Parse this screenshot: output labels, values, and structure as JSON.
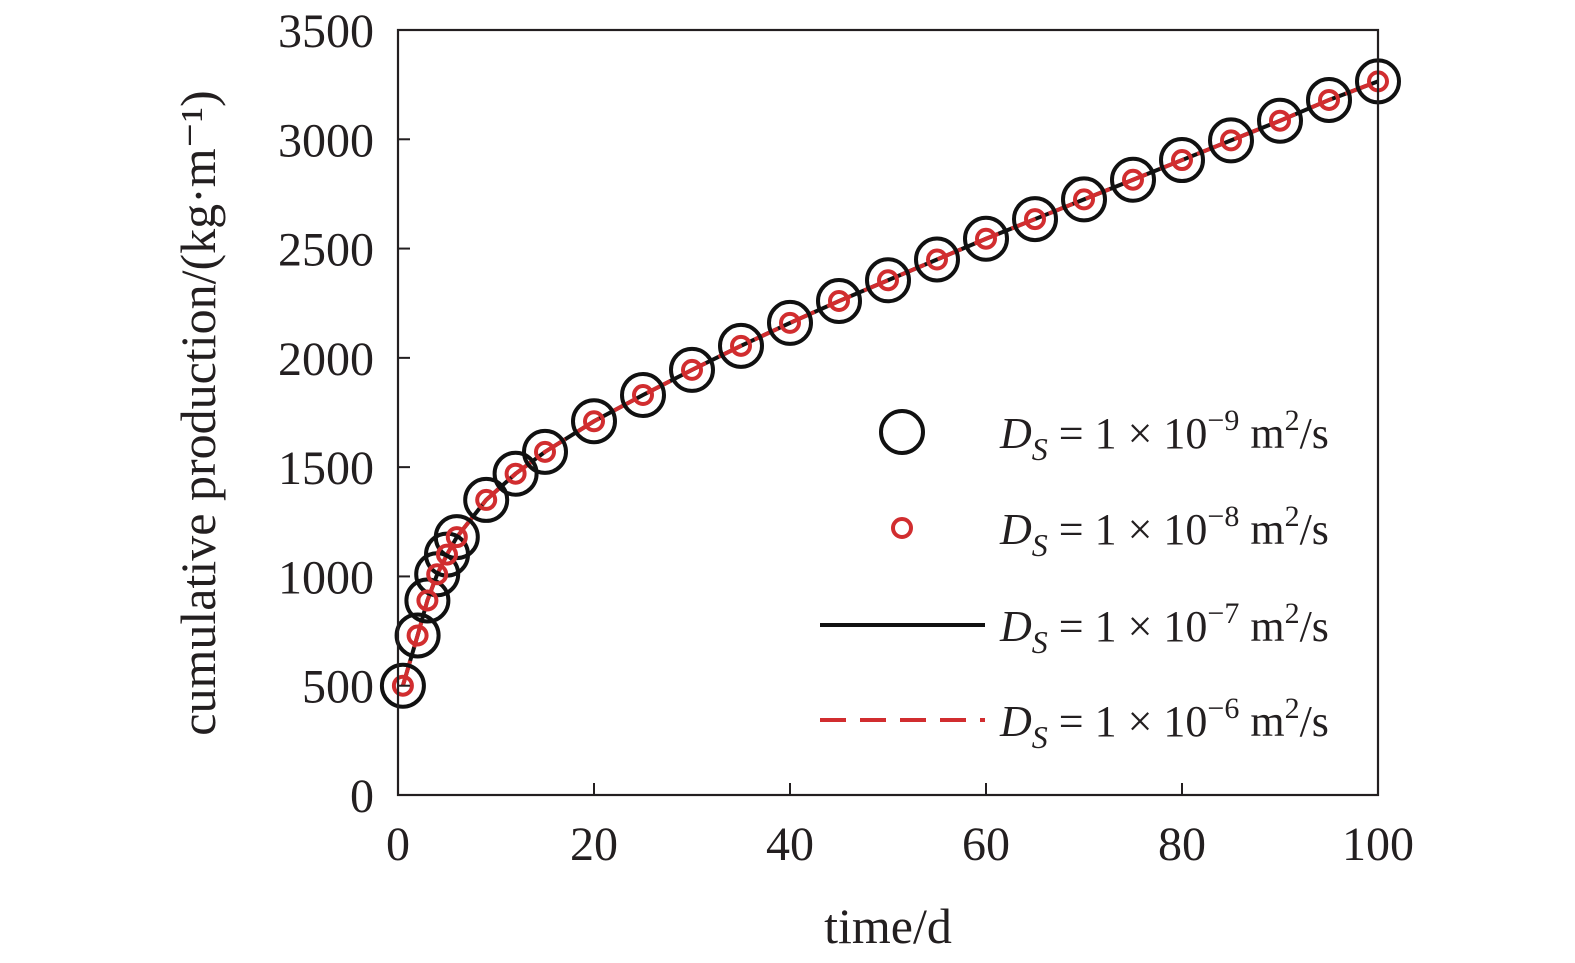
{
  "chart_data": {
    "type": "scatter",
    "title": "",
    "xlabel": "time/d",
    "ylabel": "cumulative production/(kg·m⁻¹)",
    "xlim": [
      0,
      100
    ],
    "ylim": [
      0,
      3500
    ],
    "x_ticks": [
      0,
      20,
      40,
      60,
      80,
      100
    ],
    "y_ticks": [
      0,
      500,
      1000,
      1500,
      2000,
      2500,
      3000,
      3500
    ],
    "grid": false,
    "legend_position": "lower-right",
    "x": [
      0.5,
      2,
      3,
      4,
      5,
      6,
      9,
      12,
      15,
      20,
      25,
      30,
      35,
      40,
      45,
      50,
      55,
      60,
      65,
      70,
      75,
      80,
      85,
      90,
      95,
      100
    ],
    "series": [
      {
        "name": "D_S = 1 × 10^-9 m^2/s",
        "legend": {
          "sym": "D",
          "sub": "S",
          "mid": " = 1 × 10",
          "exp": "−9",
          "unit1": " m",
          "exp2": "2",
          "unit2": "/s"
        },
        "style": "large-open-circle",
        "color": "#111111",
        "values": [
          500,
          730,
          890,
          1010,
          1100,
          1180,
          1350,
          1470,
          1570,
          1710,
          1830,
          1945,
          2055,
          2160,
          2260,
          2355,
          2450,
          2545,
          2635,
          2725,
          2815,
          2905,
          2995,
          3085,
          3180,
          3265
        ]
      },
      {
        "name": "D_S = 1 × 10^-8 m^2/s",
        "legend": {
          "sym": "D",
          "sub": "S",
          "mid": " = 1 × 10",
          "exp": "−8",
          "unit1": " m",
          "exp2": "2",
          "unit2": "/s"
        },
        "style": "small-open-circle",
        "color": "#d12d2f",
        "values": [
          500,
          730,
          890,
          1010,
          1100,
          1180,
          1350,
          1470,
          1570,
          1710,
          1830,
          1945,
          2055,
          2160,
          2260,
          2355,
          2450,
          2545,
          2635,
          2725,
          2815,
          2905,
          2995,
          3085,
          3180,
          3265
        ]
      },
      {
        "name": "D_S = 1 × 10^-7 m^2/s",
        "legend": {
          "sym": "D",
          "sub": "S",
          "mid": " = 1 × 10",
          "exp": "−7",
          "unit1": " m",
          "exp2": "2",
          "unit2": "/s"
        },
        "style": "solid-line",
        "color": "#111111",
        "values": [
          500,
          730,
          890,
          1010,
          1100,
          1180,
          1350,
          1470,
          1570,
          1710,
          1830,
          1945,
          2055,
          2160,
          2260,
          2355,
          2450,
          2545,
          2635,
          2725,
          2815,
          2905,
          2995,
          3085,
          3180,
          3265
        ]
      },
      {
        "name": "D_S = 1 × 10^-6 m^2/s",
        "legend": {
          "sym": "D",
          "sub": "S",
          "mid": " = 1 × 10",
          "exp": "−6",
          "unit1": " m",
          "exp2": "2",
          "unit2": "/s"
        },
        "style": "dashed-line",
        "color": "#d12d2f",
        "values": [
          500,
          730,
          890,
          1010,
          1100,
          1180,
          1350,
          1470,
          1570,
          1710,
          1830,
          1945,
          2055,
          2160,
          2260,
          2355,
          2450,
          2545,
          2635,
          2725,
          2815,
          2905,
          2995,
          3085,
          3180,
          3265
        ]
      }
    ]
  }
}
